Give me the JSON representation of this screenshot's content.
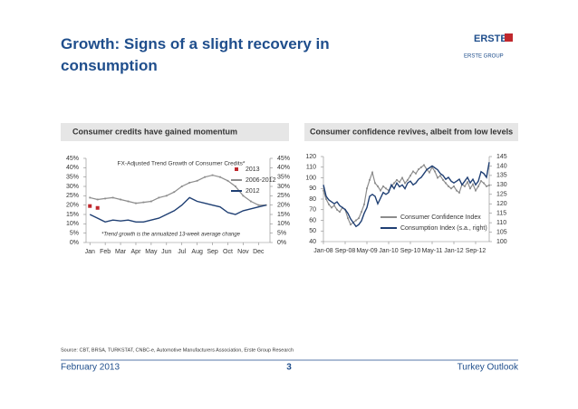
{
  "slide": {
    "title": "Growth: Signs of a slight recovery in consumption",
    "logo": "ERSTE",
    "logo_sub": "ERSTE GROUP",
    "source": "Source: CBT, BRSA, TURKSTAT, CNBC-e, Automotive Manufacturers Association, Erste Group Research",
    "date": "February 2013",
    "page": "3",
    "footer_title": "Turkey Outlook"
  },
  "chart_data": [
    {
      "type": "line",
      "panel_title": "Consumer credits have gained momentum",
      "title": "FX-Adjusted Trend Growth of Consumer Credits*",
      "annotation": "*Trend growth is the annualized 13-week average change",
      "categories": [
        "Jan",
        null,
        "Feb",
        null,
        "Mar",
        null,
        "Apr",
        null,
        "May",
        null,
        "Jun",
        null,
        "Jul",
        null,
        "Aug",
        null,
        "Sep",
        null,
        "Oct",
        null,
        "Nov",
        null,
        "Dec",
        null
      ],
      "ylim": [
        0,
        45
      ],
      "yticks": [
        {
          "value": 0,
          "label": "0%"
        },
        {
          "value": 5,
          "label": "5%"
        },
        {
          "value": 10,
          "label": "10%"
        },
        {
          "value": 15,
          "label": "15%"
        },
        {
          "value": 20,
          "label": "20%"
        },
        {
          "value": 25,
          "label": "25%"
        },
        {
          "value": 30,
          "label": "30%"
        },
        {
          "value": 35,
          "label": "35%"
        },
        {
          "value": 40,
          "label": "40%"
        },
        {
          "value": 45,
          "label": "45%"
        }
      ],
      "y2lim": [
        0,
        45
      ],
      "y2ticks": [
        {
          "value": 0,
          "label": "0%"
        },
        {
          "value": 5,
          "label": "5%"
        },
        {
          "value": 10,
          "label": "10%"
        },
        {
          "value": 15,
          "label": "15%"
        },
        {
          "value": 20,
          "label": "20%"
        },
        {
          "value": 25,
          "label": "25%"
        },
        {
          "value": 30,
          "label": "30%"
        },
        {
          "value": 35,
          "label": "35%"
        },
        {
          "value": 40,
          "label": "40%"
        },
        {
          "value": 45,
          "label": "45%"
        }
      ],
      "series": [
        {
          "name": "2013",
          "color": "#c0282d",
          "style": "markers",
          "values": [
            19.5,
            18.5,
            null,
            null,
            null,
            null,
            null,
            null,
            null,
            null,
            null,
            null,
            null,
            null,
            null,
            null,
            null,
            null,
            null,
            null,
            null,
            null,
            null,
            null
          ]
        },
        {
          "name": "2006-2012",
          "color": "#8c8c8c",
          "style": "line-markers",
          "values": [
            24,
            23,
            23.5,
            24,
            23,
            22,
            21,
            21.5,
            22,
            24,
            25,
            27,
            30,
            32,
            33,
            35,
            36,
            35,
            33,
            30,
            25,
            22,
            20,
            20
          ]
        },
        {
          "name": "2012",
          "color": "#1f3f73",
          "style": "line",
          "values": [
            15,
            13,
            11,
            12,
            11.5,
            12,
            11,
            11,
            12,
            13,
            15,
            17,
            20,
            24,
            22,
            21,
            20,
            19,
            16,
            15,
            17,
            18,
            19,
            20
          ]
        }
      ]
    },
    {
      "type": "line",
      "panel_title": "Consumer confidence revives, albeit from low levels",
      "categories": [
        "Jan-08",
        null,
        null,
        null,
        null,
        null,
        null,
        null,
        "Sep-08",
        null,
        null,
        null,
        null,
        null,
        null,
        null,
        "May-09",
        null,
        null,
        null,
        null,
        null,
        null,
        null,
        "Jan-10",
        null,
        null,
        null,
        null,
        null,
        null,
        null,
        "Sep-10",
        null,
        null,
        null,
        null,
        null,
        null,
        null,
        "May-11",
        null,
        null,
        null,
        null,
        null,
        null,
        null,
        "Jan-12",
        null,
        null,
        null,
        null,
        null,
        null,
        null,
        "Sep-12",
        null,
        null,
        null,
        null,
        null
      ],
      "ylim": [
        40,
        120
      ],
      "yticks": [
        40,
        50,
        60,
        70,
        80,
        90,
        100,
        110,
        120
      ],
      "y2lim": [
        100,
        145
      ],
      "y2ticks": [
        100,
        105,
        110,
        115,
        120,
        125,
        130,
        135,
        140,
        145
      ],
      "series": [
        {
          "name": "Consumer Confidence Index",
          "color": "#8c8c8c",
          "style": "line-markers",
          "values": [
            88,
            80,
            75,
            72,
            74,
            70,
            68,
            72,
            70,
            62,
            56,
            58,
            60,
            62,
            68,
            75,
            90,
            98,
            105,
            95,
            92,
            88,
            92,
            90,
            88,
            92,
            95,
            98,
            96,
            100,
            95,
            98,
            102,
            106,
            104,
            108,
            110,
            112,
            108,
            105,
            110,
            106,
            100,
            102,
            98,
            95,
            92,
            90,
            92,
            88,
            86,
            94,
            92,
            96,
            90,
            94,
            88,
            92,
            97,
            95,
            92,
            93
          ]
        },
        {
          "name": "Consumption Index (s.a., right)",
          "color": "#1f3f73",
          "style": "line",
          "axis": "y2",
          "values": [
            130,
            124,
            122,
            121,
            120,
            121,
            119,
            118,
            117,
            115,
            112,
            110,
            108,
            109,
            111,
            115,
            118,
            124,
            125,
            124,
            120,
            123,
            126,
            125,
            126,
            130,
            128,
            131,
            129,
            130,
            128,
            131,
            132,
            130,
            131,
            133,
            134,
            136,
            138,
            139,
            140,
            139,
            138,
            136,
            135,
            133,
            134,
            132,
            131,
            132,
            133,
            130,
            132,
            134,
            131,
            133,
            130,
            132,
            137,
            136,
            134,
            142
          ]
        }
      ]
    }
  ]
}
